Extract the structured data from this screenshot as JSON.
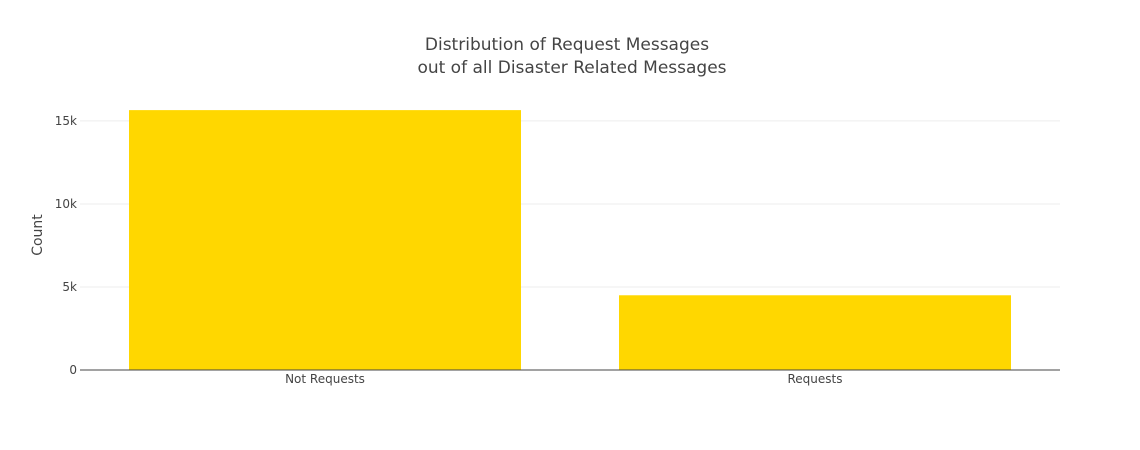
{
  "chart_data": {
    "type": "bar",
    "title_lines": [
      "Distribution of Request Messages",
      "out of all Disaster Related Messages"
    ],
    "xlabel": "",
    "ylabel": "Count",
    "categories": [
      "Not Requests",
      "Requests"
    ],
    "values": [
      15650,
      4500
    ],
    "ylim": [
      0,
      16500
    ],
    "yticks": [
      0,
      5000,
      10000,
      15000
    ],
    "ytick_labels": [
      "0",
      "5k",
      "10k",
      "15k"
    ],
    "grid": true,
    "legend": "none",
    "colors": {
      "bar": "#FFD700",
      "grid": "#EEEEEE",
      "axis": "#444444",
      "text": "#444444"
    }
  }
}
